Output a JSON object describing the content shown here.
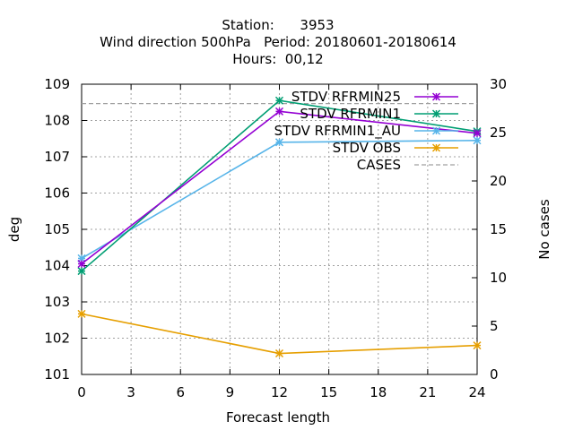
{
  "chart_data": {
    "type": "line",
    "title_lines": [
      "Station:      3953",
      "Wind direction 500hPa   Period: 20180601-20180614",
      "Hours:  00,12"
    ],
    "xlabel": "Forecast length",
    "ylabel": "deg",
    "y2label": "No cases",
    "x_ticks": [
      0,
      3,
      6,
      9,
      12,
      15,
      18,
      21,
      24
    ],
    "y_ticks": [
      101,
      102,
      103,
      104,
      105,
      106,
      107,
      108,
      109
    ],
    "y2_ticks": [
      0,
      5,
      10,
      15,
      20,
      25,
      30
    ],
    "xlim": [
      0,
      24
    ],
    "ylim": [
      101,
      109
    ],
    "y2lim": [
      0,
      30
    ],
    "grid": true,
    "legend_position": "top-right",
    "series": [
      {
        "name": "STDV RFRMIN25",
        "color": "#9400d3",
        "axis": "y",
        "dashed": false,
        "marker": true,
        "x": [
          0,
          12,
          24
        ],
        "values": [
          104.05,
          108.25,
          107.65
        ]
      },
      {
        "name": "STDV RFRMIN1",
        "color": "#009e73",
        "axis": "y",
        "dashed": false,
        "marker": true,
        "x": [
          0,
          12,
          24
        ],
        "values": [
          103.85,
          108.55,
          107.7
        ]
      },
      {
        "name": "STDV RFRMIN1_AU",
        "color": "#56b4e9",
        "axis": "y",
        "dashed": false,
        "marker": true,
        "x": [
          0,
          12,
          24
        ],
        "values": [
          104.2,
          107.4,
          107.45
        ]
      },
      {
        "name": "STDV OBS",
        "color": "#e69f00",
        "axis": "y",
        "dashed": false,
        "marker": true,
        "x": [
          0,
          12,
          24
        ],
        "values": [
          102.67,
          101.58,
          101.8
        ]
      },
      {
        "name": "CASES",
        "color": "#a0a0a0",
        "axis": "y2",
        "dashed": true,
        "marker": false,
        "x": [
          0,
          24
        ],
        "values": [
          28,
          28
        ]
      }
    ]
  }
}
